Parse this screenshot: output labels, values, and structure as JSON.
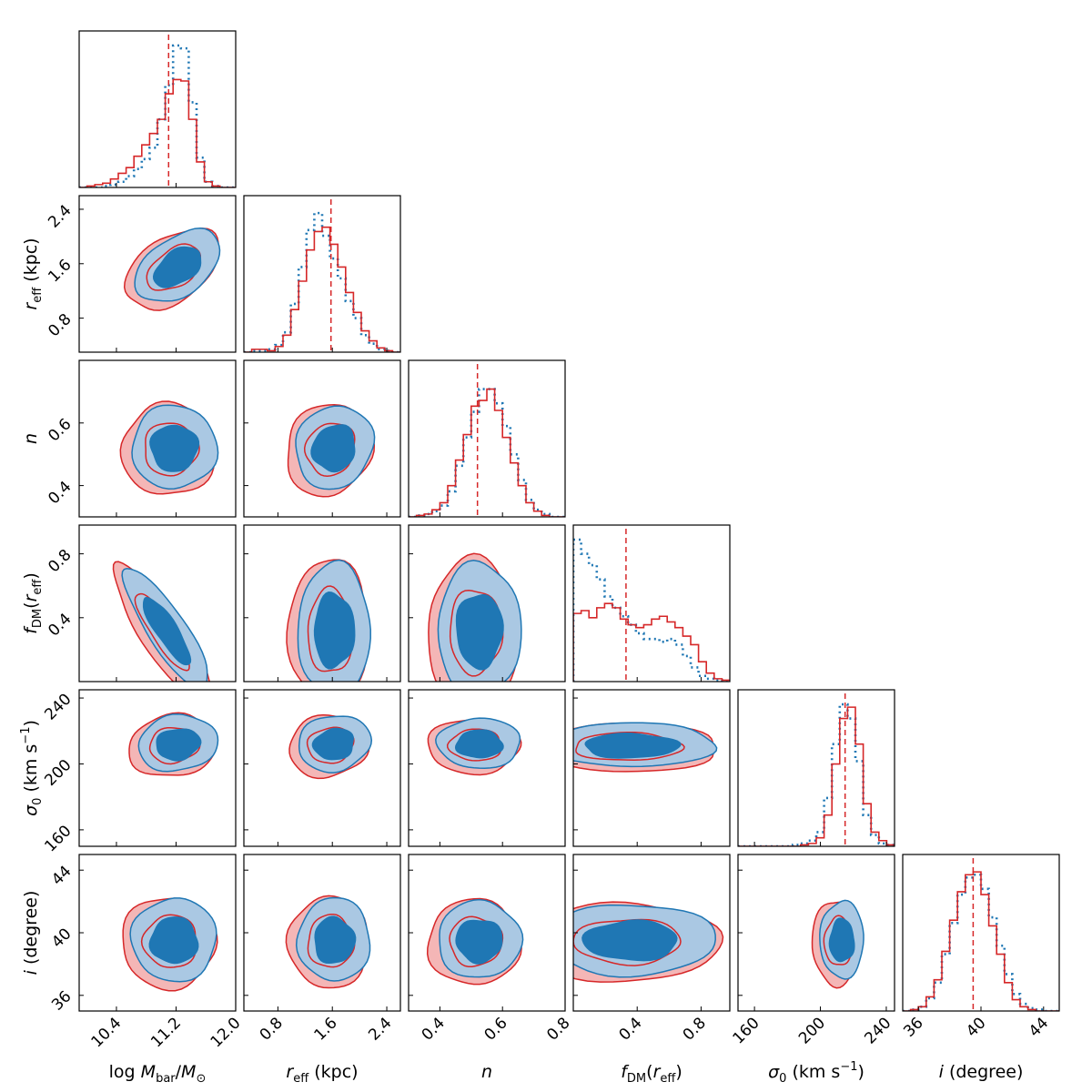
{
  "chart_data": {
    "type": "corner",
    "colors": {
      "sample_a": "#d62728",
      "sample_b": "#1f77b4",
      "sample_a_fill": "#f4b6b6",
      "sample_b_fill": "#aac8e3"
    },
    "series": [
      {
        "name": "sample A",
        "style": "solid red step histogram, red filled 1/2-sigma contours"
      },
      {
        "name": "sample B",
        "style": "dotted blue histogram, blue filled 1/2-sigma contours"
      }
    ],
    "parameters": [
      {
        "key": "logM",
        "tick_labels": [
          "10.4",
          "11.2",
          "12.0"
        ],
        "ticks": [
          10.4,
          11.2,
          12.0
        ],
        "range": [
          9.9,
          12.0
        ],
        "x_title_main": "log ",
        "x_title_var": "M",
        "x_title_sub": "bar",
        "x_title_mid": "/",
        "x_title_var2": "M",
        "x_title_sub2": "⊙",
        "median_marker": 11.1
      },
      {
        "key": "reff",
        "tick_labels": [
          "0.8",
          "1.6",
          "2.4"
        ],
        "ticks": [
          0.8,
          1.6,
          2.4
        ],
        "range": [
          0.3,
          2.6
        ],
        "x_title_var": "r",
        "x_title_sub": "eff",
        "x_title_unit": " (kpc)",
        "y_title_var": "r",
        "y_title_sub": "eff",
        "y_title_unit": " (kpc)",
        "median_marker": 1.58
      },
      {
        "key": "n",
        "tick_labels": [
          "0.4",
          "0.6",
          "0.8"
        ],
        "ticks": [
          0.4,
          0.6,
          0.8
        ],
        "range": [
          0.3,
          0.8
        ],
        "x_title_var": "n",
        "y_title_var": "n",
        "median_marker": 0.52
      },
      {
        "key": "fDM",
        "tick_labels": [
          "0.4",
          "0.8"
        ],
        "ticks": [
          0.4,
          0.8
        ],
        "range": [
          0.0,
          0.98
        ],
        "x_title_var": "f",
        "x_title_sub": "DM",
        "x_title_mid": "(",
        "x_title_var2": "r",
        "x_title_sub2": "eff",
        "x_title_end": ")",
        "y_title_var": "f",
        "y_title_sub": "DM",
        "y_title_mid": "(",
        "y_title_var2": "r",
        "y_title_sub2": "eff",
        "y_title_end": ")",
        "median_marker": 0.33
      },
      {
        "key": "sigma0",
        "tick_labels": [
          "160",
          "200",
          "240"
        ],
        "ticks": [
          160,
          200,
          240
        ],
        "range": [
          150,
          245
        ],
        "x_title_var": "σ",
        "x_title_sub": "0",
        "x_title_unit": " (km s",
        "x_title_sup": "−1",
        "x_title_end": ")",
        "y_title_var": "σ",
        "y_title_sub": "0",
        "y_title_unit": " (km s",
        "y_title_sup": "−1",
        "y_title_end": ")",
        "median_marker": 215
      },
      {
        "key": "i",
        "tick_labels": [
          "36",
          "40",
          "44"
        ],
        "ticks": [
          36,
          40,
          44
        ],
        "range": [
          35,
          45
        ],
        "x_title_var": "i",
        "x_title_unit": " (degree)",
        "y_title_var": "i",
        "y_title_unit": " (degree)",
        "median_marker": 39.5
      }
    ],
    "histograms": {
      "logM": {
        "bins": [
          9.9,
          12.0
        ],
        "red": [
          0.0,
          0.01,
          0.02,
          0.03,
          0.06,
          0.1,
          0.14,
          0.22,
          0.3,
          0.38,
          0.48,
          0.66,
          0.76,
          0.75,
          0.48,
          0.18,
          0.04,
          0.01,
          0.0,
          0.0
        ],
        "blue": [
          0.0,
          0.0,
          0.0,
          0.01,
          0.02,
          0.04,
          0.08,
          0.13,
          0.2,
          0.28,
          0.48,
          0.72,
          1.0,
          0.98,
          0.6,
          0.21,
          0.04,
          0.01,
          0.0,
          0.0
        ]
      },
      "reff": {
        "bins": [
          0.3,
          2.6
        ],
        "red": [
          0.0,
          0.02,
          0.02,
          0.01,
          0.04,
          0.12,
          0.3,
          0.5,
          0.72,
          0.85,
          0.88,
          0.76,
          0.6,
          0.42,
          0.28,
          0.15,
          0.08,
          0.03,
          0.01,
          0.0
        ],
        "blue": [
          0.0,
          0.01,
          0.01,
          0.02,
          0.05,
          0.14,
          0.34,
          0.6,
          0.86,
          0.98,
          0.82,
          0.66,
          0.52,
          0.36,
          0.24,
          0.12,
          0.06,
          0.02,
          0.01,
          0.0
        ]
      },
      "n": {
        "bins": [
          0.3,
          0.8
        ],
        "red": [
          0.0,
          0.01,
          0.02,
          0.05,
          0.1,
          0.22,
          0.4,
          0.58,
          0.78,
          0.82,
          0.9,
          0.75,
          0.56,
          0.38,
          0.22,
          0.1,
          0.04,
          0.01,
          0.0,
          0.0
        ],
        "blue": [
          0.0,
          0.01,
          0.02,
          0.04,
          0.08,
          0.18,
          0.36,
          0.56,
          0.74,
          0.9,
          0.9,
          0.8,
          0.64,
          0.44,
          0.26,
          0.12,
          0.05,
          0.02,
          0.0,
          0.0
        ]
      },
      "fDM": {
        "bins": [
          0.0,
          0.98
        ],
        "red": [
          0.48,
          0.5,
          0.45,
          0.52,
          0.55,
          0.52,
          0.44,
          0.4,
          0.38,
          0.4,
          0.44,
          0.46,
          0.42,
          0.38,
          0.32,
          0.26,
          0.14,
          0.06,
          0.02,
          0.01
        ],
        "blue": [
          1.0,
          0.9,
          0.82,
          0.72,
          0.6,
          0.52,
          0.46,
          0.4,
          0.34,
          0.3,
          0.3,
          0.28,
          0.3,
          0.26,
          0.18,
          0.1,
          0.04,
          0.02,
          0.01,
          0.0
        ]
      },
      "sigma0": {
        "bins": [
          150,
          245
        ],
        "red": [
          0.0,
          0.0,
          0.0,
          0.0,
          0.0,
          0.0,
          0.0,
          0.0,
          0.01,
          0.02,
          0.06,
          0.22,
          0.58,
          0.9,
          0.98,
          0.72,
          0.3,
          0.1,
          0.04,
          0.01
        ],
        "blue": [
          0.0,
          0.0,
          0.0,
          0.0,
          0.0,
          0.0,
          0.0,
          0.01,
          0.02,
          0.04,
          0.1,
          0.34,
          0.72,
          1.0,
          0.9,
          0.6,
          0.22,
          0.08,
          0.02,
          0.01
        ]
      },
      "i": {
        "bins": [
          35,
          45
        ],
        "red": [
          0.0,
          0.01,
          0.03,
          0.1,
          0.22,
          0.42,
          0.64,
          0.84,
          0.96,
          0.98,
          0.82,
          0.6,
          0.4,
          0.2,
          0.08,
          0.03,
          0.01,
          0.0,
          0.0,
          0.0
        ],
        "blue": [
          0.0,
          0.01,
          0.03,
          0.09,
          0.2,
          0.4,
          0.62,
          0.82,
          0.94,
          0.96,
          0.86,
          0.66,
          0.46,
          0.26,
          0.12,
          0.05,
          0.02,
          0.01,
          0.0,
          0.0
        ]
      }
    },
    "joint_2d": [
      {
        "x": "logM",
        "y": "reff",
        "center": [
          11.2,
          1.55
        ],
        "spread": [
          0.3,
          0.28
        ],
        "rho": 0.45
      },
      {
        "x": "logM",
        "y": "n",
        "center": [
          11.15,
          0.52
        ],
        "spread": [
          0.3,
          0.07
        ],
        "rho": 0.0
      },
      {
        "x": "logM",
        "y": "fDM",
        "center": [
          11.05,
          0.32
        ],
        "spread": [
          0.3,
          0.2
        ],
        "rho": -0.85
      },
      {
        "x": "logM",
        "y": "sigma0",
        "center": [
          11.2,
          212
        ],
        "spread": [
          0.28,
          9
        ],
        "rho": 0.1
      },
      {
        "x": "logM",
        "y": "i",
        "center": [
          11.15,
          39.5
        ],
        "spread": [
          0.3,
          1.4
        ],
        "rho": 0.0
      },
      {
        "x": "reff",
        "y": "n",
        "center": [
          1.6,
          0.52
        ],
        "spread": [
          0.3,
          0.07
        ],
        "rho": 0.1
      },
      {
        "x": "reff",
        "y": "fDM",
        "center": [
          1.6,
          0.32
        ],
        "spread": [
          0.28,
          0.22
        ],
        "rho": 0.0
      },
      {
        "x": "reff",
        "y": "sigma0",
        "center": [
          1.6,
          212
        ],
        "spread": [
          0.28,
          9
        ],
        "rho": 0.1
      },
      {
        "x": "reff",
        "y": "i",
        "center": [
          1.6,
          39.5
        ],
        "spread": [
          0.28,
          1.4
        ],
        "rho": 0.0
      },
      {
        "x": "n",
        "y": "fDM",
        "center": [
          0.52,
          0.32
        ],
        "spread": [
          0.07,
          0.22
        ],
        "rho": 0.0
      },
      {
        "x": "n",
        "y": "sigma0",
        "center": [
          0.52,
          212
        ],
        "spread": [
          0.07,
          8
        ],
        "rho": 0.0
      },
      {
        "x": "n",
        "y": "i",
        "center": [
          0.52,
          39.5
        ],
        "spread": [
          0.07,
          1.3
        ],
        "rho": 0.0
      },
      {
        "x": "fDM",
        "y": "sigma0",
        "center": [
          0.35,
          211
        ],
        "spread": [
          0.28,
          7
        ],
        "rho": 0.0
      },
      {
        "x": "fDM",
        "y": "i",
        "center": [
          0.35,
          39.5
        ],
        "spread": [
          0.28,
          1.2
        ],
        "rho": 0.0
      },
      {
        "x": "sigma0",
        "y": "i",
        "center": [
          212,
          39.5
        ],
        "spread": [
          7,
          1.3
        ],
        "rho": 0.0
      }
    ]
  }
}
